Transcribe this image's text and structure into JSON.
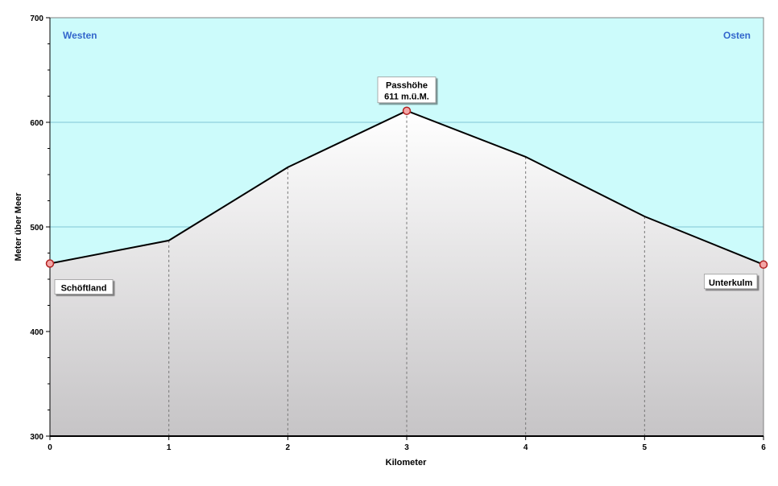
{
  "chart_data": {
    "type": "area",
    "title": "",
    "xlabel": "Kilometer",
    "ylabel": "Meter über Meer",
    "xlim": [
      0,
      6
    ],
    "ylim": [
      300,
      700
    ],
    "x_ticks": [
      0,
      1,
      2,
      3,
      4,
      5,
      6
    ],
    "y_ticks": [
      300,
      400,
      500,
      600,
      700
    ],
    "x": [
      0,
      1,
      2,
      3,
      4,
      5,
      6
    ],
    "series": [
      {
        "values": [
          465,
          487,
          557,
          611,
          567,
          510,
          464
        ]
      }
    ],
    "grid": {
      "horizontal": true,
      "vertical_dashed_at_points": true
    },
    "corner_labels": {
      "left": "Westen",
      "right": "Osten"
    },
    "annotations": [
      {
        "x": 0,
        "y": 465,
        "text": [
          "Schöftland"
        ]
      },
      {
        "x": 3,
        "y": 611,
        "text": [
          "Passhöhe",
          "611 m.ü.M."
        ]
      },
      {
        "x": 6,
        "y": 464,
        "text": [
          "Unterkulm"
        ]
      }
    ],
    "colors": {
      "sky": "#ccfbfb",
      "fill_top": "#ffffff",
      "fill_bottom": "#c6c4c6",
      "line": "#000000",
      "gridline": "#7fc5d4",
      "marker_fill": "#f4a6a6",
      "marker_stroke": "#b22222",
      "corner_label": "#3366cc"
    }
  }
}
